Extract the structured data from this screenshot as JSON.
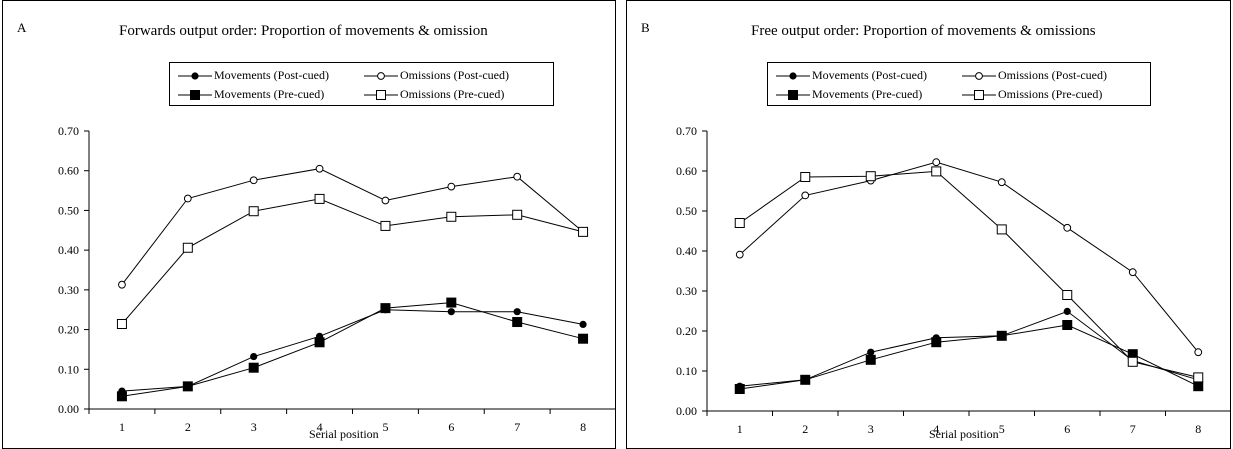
{
  "chart_data": [
    {
      "type": "line",
      "panel_letter": "A",
      "title": "Forwards output order: Proportion of movements & omission",
      "xlabel": "Serial position",
      "ylabel": "",
      "categories": [
        "1",
        "2",
        "3",
        "4",
        "5",
        "6",
        "7",
        "8"
      ],
      "ylim": [
        0,
        0.7
      ],
      "yticks": [
        "0.00",
        "0.10",
        "0.20",
        "0.30",
        "0.40",
        "0.50",
        "0.60",
        "0.70"
      ],
      "legend_placement": "top",
      "series": [
        {
          "name": "Movements (Post-cued)",
          "marker": "filled-circle",
          "values": [
            0.045,
            0.057,
            0.132,
            0.183,
            0.25,
            0.245,
            0.245,
            0.213
          ]
        },
        {
          "name": "Omissions (Post-cued)",
          "marker": "open-circle",
          "values": [
            0.313,
            0.53,
            0.576,
            0.605,
            0.525,
            0.56,
            0.585,
            0.446
          ]
        },
        {
          "name": "Movements (Pre-cued)",
          "marker": "filled-square",
          "values": [
            0.032,
            0.057,
            0.104,
            0.168,
            0.254,
            0.268,
            0.219,
            0.177
          ]
        },
        {
          "name": "Omissions (Pre-cued)",
          "marker": "open-square",
          "values": [
            0.214,
            0.406,
            0.498,
            0.529,
            0.461,
            0.484,
            0.489,
            0.446
          ]
        }
      ]
    },
    {
      "type": "line",
      "panel_letter": "B",
      "title": "Free output order: Proportion of movements & omissions",
      "xlabel": "Serial position",
      "ylabel": "",
      "categories": [
        "1",
        "2",
        "3",
        "4",
        "5",
        "6",
        "7",
        "8"
      ],
      "ylim": [
        0,
        0.7
      ],
      "yticks": [
        "0.00",
        "0.10",
        "0.20",
        "0.30",
        "0.40",
        "0.50",
        "0.60",
        "0.70"
      ],
      "legend_placement": "top",
      "series": [
        {
          "name": "Movements (Post-cued)",
          "marker": "filled-circle",
          "values": [
            0.062,
            0.078,
            0.147,
            0.183,
            0.188,
            0.249,
            0.126,
            0.078
          ]
        },
        {
          "name": "Omissions (Post-cued)",
          "marker": "open-circle",
          "values": [
            0.391,
            0.539,
            0.576,
            0.622,
            0.572,
            0.458,
            0.347,
            0.147
          ]
        },
        {
          "name": "Movements (Pre-cued)",
          "marker": "filled-square",
          "values": [
            0.055,
            0.078,
            0.128,
            0.172,
            0.188,
            0.215,
            0.142,
            0.062
          ]
        },
        {
          "name": "Omissions (Pre-cued)",
          "marker": "open-square",
          "values": [
            0.47,
            0.585,
            0.587,
            0.599,
            0.454,
            0.29,
            0.123,
            0.084
          ]
        }
      ]
    }
  ]
}
